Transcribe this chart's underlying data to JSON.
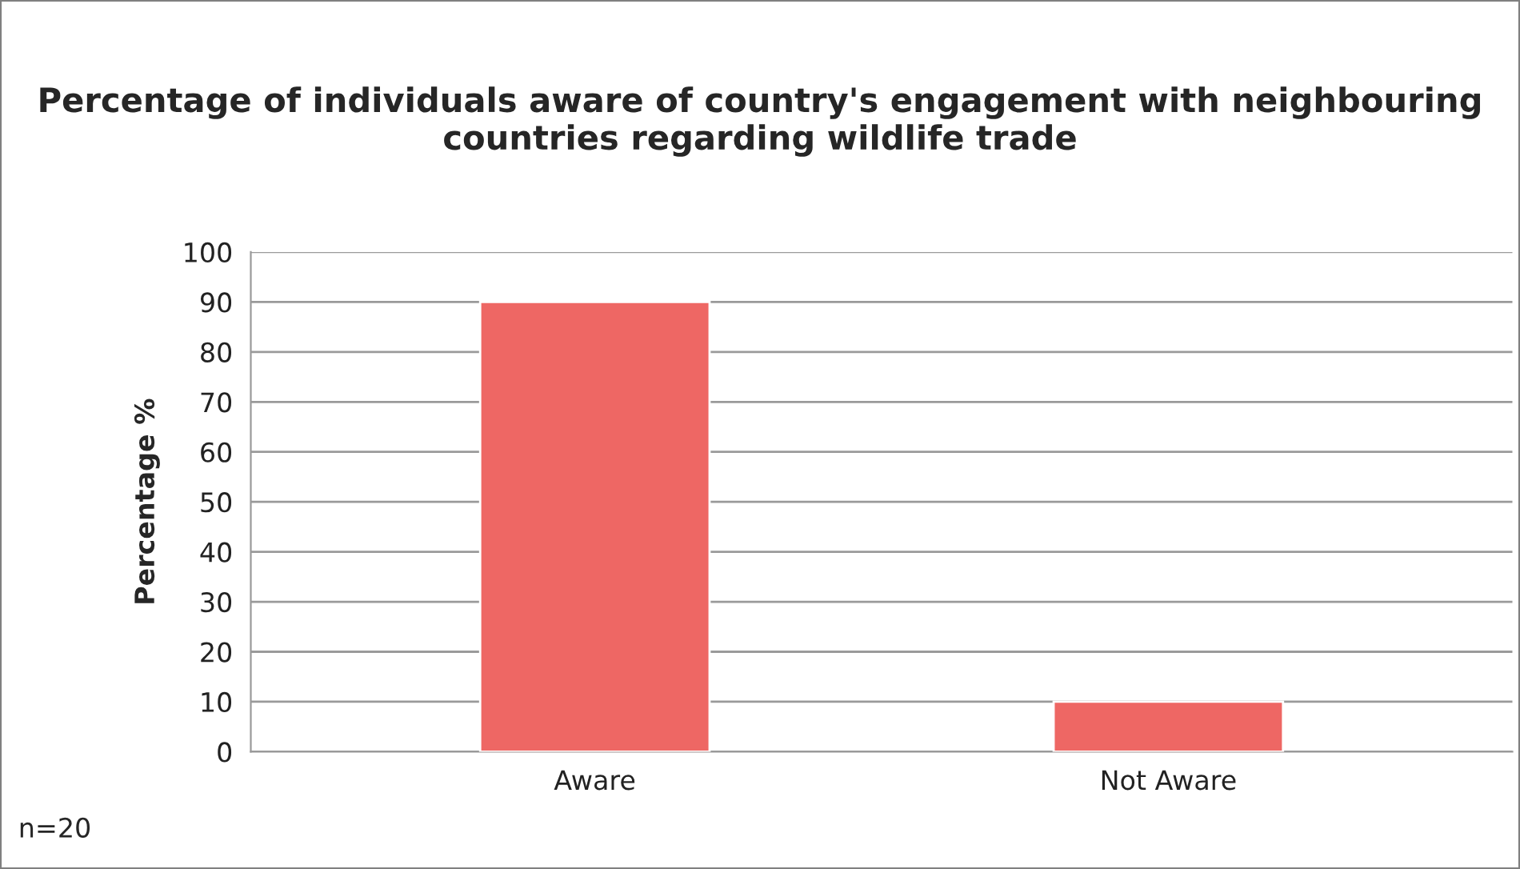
{
  "chart_data": {
    "type": "bar",
    "title": "Percentage of individuals aware of country's engagement with neighbouring countries regarding wildlife trade",
    "ylabel": "Percentage %",
    "categories": [
      "Aware",
      "Not Aware"
    ],
    "values": [
      90,
      10
    ],
    "color": "#ee6764",
    "ylim": [
      0,
      100
    ],
    "yticks": [
      0,
      10,
      20,
      30,
      40,
      50,
      60,
      70,
      80,
      90,
      100
    ],
    "grid": "y",
    "legend": false,
    "annotations": [
      "n=20"
    ]
  }
}
